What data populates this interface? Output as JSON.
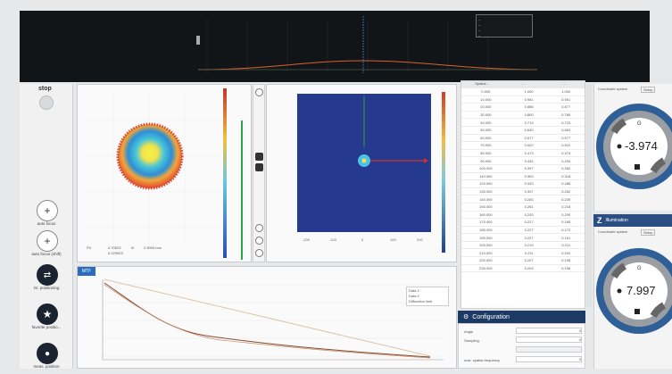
{
  "top_legend": [
    "_",
    "_",
    "_",
    "_"
  ],
  "left_panel": {
    "stop_label": "stop",
    "buttons": [
      {
        "label": "auto focus",
        "icon": "plus-icon"
      },
      {
        "label": "auto focus (shift)",
        "icon": "plus-icon"
      },
      {
        "label": "Gr. positioning",
        "icon": "arrows-icon"
      },
      {
        "label": "favorite positio...",
        "icon": "star-icon"
      },
      {
        "label": "meas. position",
        "icon": "pin-icon"
      }
    ]
  },
  "map_readout": {
    "k1": "PV",
    "v1": "0.70823",
    "k2": "I0",
    "v2": "2.9003 mm",
    "v3": "0.229923"
  },
  "table": {
    "header": [
      "Spatial...",
      "...",
      "..."
    ],
    "rows": [
      [
        "0.000",
        "1.000",
        "1.000"
      ],
      [
        "10.000",
        "0.951",
        "0.951"
      ],
      [
        "20.000",
        "0.856",
        "0.877"
      ],
      [
        "30.000",
        "0.800",
        "0.785"
      ],
      [
        "40.000",
        "0.713",
        "0.723"
      ],
      [
        "50.000",
        "0.640",
        "0.663"
      ],
      [
        "60.000",
        "0.577",
        "0.577"
      ],
      [
        "70.000",
        "0.522",
        "0.522"
      ],
      [
        "80.000",
        "0.473",
        "0.473"
      ],
      [
        "90.000",
        "0.434",
        "0.434"
      ],
      [
        "100.000",
        "0.397",
        "0.352"
      ],
      [
        "110.000",
        "0.363",
        "0.318"
      ],
      [
        "120.000",
        "0.333",
        "0.288"
      ],
      [
        "130.000",
        "0.307",
        "0.262"
      ],
      [
        "140.000",
        "0.283",
        "0.239"
      ],
      [
        "150.000",
        "0.261",
        "0.218"
      ],
      [
        "160.000",
        "0.243",
        "0.200"
      ],
      [
        "170.000",
        "0.227",
        "0.185"
      ],
      [
        "180.000",
        "0.227",
        "0.172"
      ],
      [
        "190.000",
        "0.227",
        "0.161"
      ],
      [
        "200.000",
        "0.219",
        "0.211"
      ],
      [
        "210.000",
        "0.211",
        "0.202"
      ],
      [
        "220.000",
        "0.207",
        "0.198"
      ],
      [
        "230.000",
        "0.203",
        "0.196"
      ]
    ]
  },
  "configuration": {
    "title": "Configuration",
    "rows": [
      {
        "label": "Angle",
        "value": "0"
      },
      {
        "label": "Sampling",
        "value": "0"
      },
      {
        "label": "",
        "value": "Autoscale spatial frequency"
      },
      {
        "label": "max. spatial frequency",
        "value": "0"
      }
    ]
  },
  "gauges": [
    {
      "head_left": "Coordinate system",
      "head_right": "Setup",
      "value": "-3.974",
      "top_symbol": "0"
    },
    {
      "title": "Z",
      "subtitle": "Illumination",
      "head_left": "Coordinate system",
      "head_right": "Setup",
      "value": "7.997",
      "top_symbol": "0"
    }
  ],
  "line_chart_tab": "MTF",
  "line_chart_legend": [
    "Data 1",
    "Data 2",
    "Diffraction limit"
  ],
  "colors": {
    "dark_bg": "#121518",
    "navy": "#1d3a64",
    "accent_blue": "#2b6cc0",
    "curve_brown": "#8a4a2e",
    "curve_tan": "#d8c6a4"
  }
}
